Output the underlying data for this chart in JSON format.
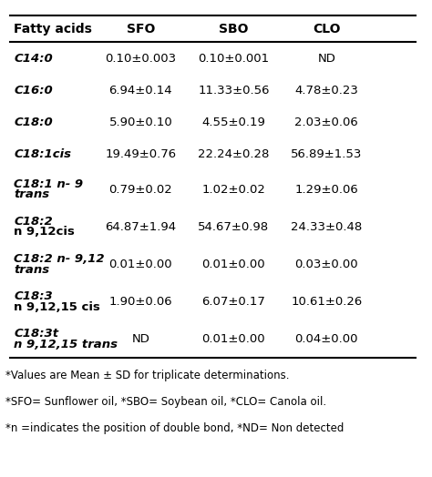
{
  "headers": [
    "Fatty acids",
    "SFO",
    "SBO",
    "CLO"
  ],
  "rows": [
    {
      "label_lines": [
        "C14:0"
      ],
      "label_italic": [
        true
      ],
      "sfo": "0.10±0.003",
      "sbo": "0.10±0.001",
      "clo": "ND"
    },
    {
      "label_lines": [
        "C16:0"
      ],
      "label_italic": [
        true
      ],
      "sfo": "6.94±0.14",
      "sbo": "11.33±0.56",
      "clo": "4.78±0.23"
    },
    {
      "label_lines": [
        "C18:0"
      ],
      "label_italic": [
        true
      ],
      "sfo": "5.90±0.10",
      "sbo": "4.55±0.19",
      "clo": "2.03±0.06"
    },
    {
      "label_lines": [
        "C18:1cis"
      ],
      "label_italic": [
        true
      ],
      "sfo": "19.49±0.76",
      "sbo": "22.24±0.28",
      "clo": "56.89±1.53"
    },
    {
      "label_lines": [
        "C18:1 n- 9",
        "trans"
      ],
      "label_italic": [
        true,
        true
      ],
      "sfo": "0.79±0.02",
      "sbo": "1.02±0.02",
      "clo": "1.29±0.06"
    },
    {
      "label_lines": [
        "C18:2",
        "n 9,12cis"
      ],
      "label_italic": [
        true,
        false
      ],
      "sfo": "64.87±1.94",
      "sbo": "54.67±0.98",
      "clo": "24.33±0.48"
    },
    {
      "label_lines": [
        "C18:2 n- 9,12",
        "trans"
      ],
      "label_italic": [
        true,
        true
      ],
      "sfo": "0.01±0.00",
      "sbo": "0.01±0.00",
      "clo": "0.03±0.00"
    },
    {
      "label_lines": [
        "C18:3",
        "n 9,12,15 cis"
      ],
      "label_italic": [
        true,
        false
      ],
      "sfo": "1.90±0.06",
      "sbo": "6.07±0.17",
      "clo": "10.61±0.26"
    },
    {
      "label_lines": [
        "C18:3t",
        "n 9,12,15 trans"
      ],
      "label_italic": [
        true,
        true
      ],
      "sfo": "ND",
      "sbo": "0.01±0.00",
      "clo": "0.04±0.00"
    }
  ],
  "footnotes": [
    "*Values are Mean ± SD for triplicate determinations.",
    "*SFO= Sunflower oil, *SBO= Soybean oil, *CLO= Canola oil.",
    "*n =indicates the position of double bond, *ND= Non detected"
  ],
  "bg_color": "#ffffff",
  "text_color": "#000000",
  "header_fontsize": 10,
  "cell_fontsize": 9.5,
  "footnote_fontsize": 8.5
}
